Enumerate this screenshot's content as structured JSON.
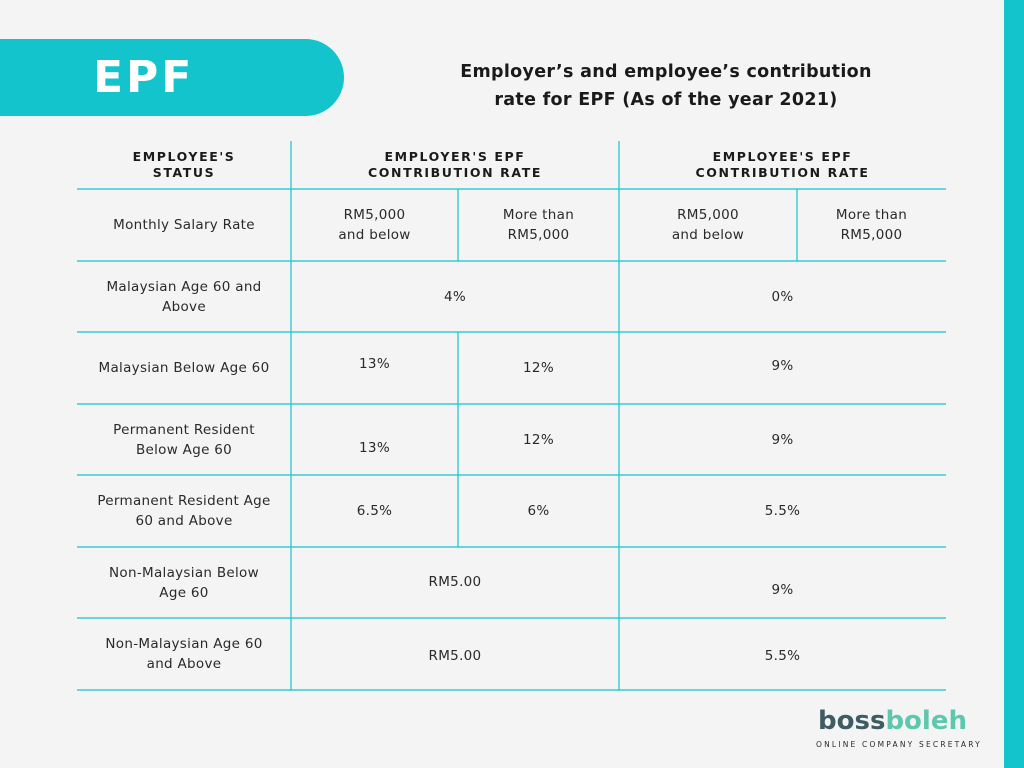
{
  "banner": {
    "title": "EPF"
  },
  "heading": {
    "line1": "Employer’s and employee’s contribution",
    "line2": "rate for EPF (As of the year 2021)"
  },
  "table": {
    "headers": {
      "status": [
        "EMPLOYEE'S",
        "STATUS"
      ],
      "employer": [
        "EMPLOYER'S EPF",
        "CONTRIBUTION RATE"
      ],
      "employee": [
        "EMPLOYEE'S EPF",
        "CONTRIBUTION RATE"
      ]
    },
    "salary_row": {
      "label": "Monthly Salary Rate",
      "employer_low": [
        "RM5,000",
        "and below"
      ],
      "employer_high": [
        "More than",
        "RM5,000"
      ],
      "employee_low": [
        "RM5,000",
        "and below"
      ],
      "employee_high": [
        "More than",
        "RM5,000"
      ]
    },
    "rows": [
      {
        "label": [
          "Malaysian Age 60 and",
          "Above"
        ],
        "employer": "4%",
        "employee": "0%"
      },
      {
        "label": [
          "Malaysian Below Age 60"
        ],
        "employer_low": "13%",
        "employer_high": "12%",
        "employee": "9%"
      },
      {
        "label": [
          "Permanent Resident",
          "Below Age 60"
        ],
        "employer_low": "13%",
        "employer_high": "12%",
        "employee": "9%"
      },
      {
        "label": [
          "Permanent Resident Age",
          "60 and Above"
        ],
        "employer_low": "6.5%",
        "employer_high": "6%",
        "employee": "5.5%"
      },
      {
        "label": [
          "Non-Malaysian Below",
          "Age 60"
        ],
        "employer": "RM5.00",
        "employee": "9%"
      },
      {
        "label": [
          "Non-Malaysian Age 60",
          "and Above"
        ],
        "employer": "RM5.00",
        "employee": "5.5%"
      }
    ]
  },
  "logo": {
    "part1": "boss",
    "part2": "boleh",
    "tagline": "ONLINE COMPANY SECRETARY"
  },
  "colors": {
    "accent": "#13c4cc",
    "logo_dark": "#3f5c63",
    "logo_light": "#5ec8ae"
  }
}
